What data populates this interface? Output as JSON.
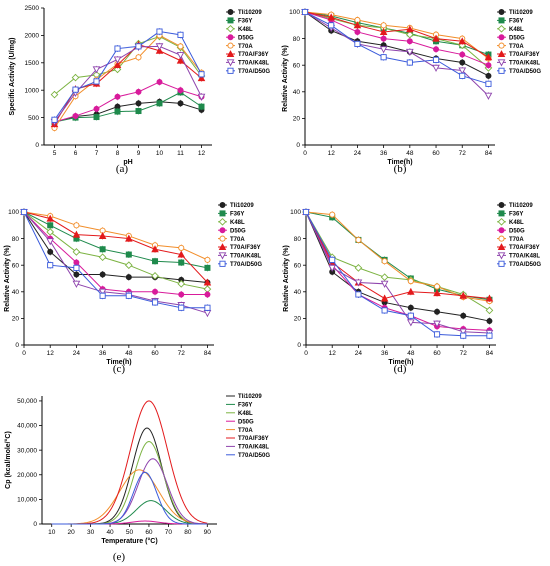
{
  "colors": {
    "Tli10209": "#222222",
    "F36Y": "#1f8a4c",
    "K48L": "#7cb342",
    "D50G": "#d81b9b",
    "T70A": "#f28e2b",
    "T70A/F36Y": "#e31a1c",
    "T70A/K48L": "#8e44ad",
    "T70A/D50G": "#3b5bdb"
  },
  "series_order": [
    "Tli10209",
    "F36Y",
    "K48L",
    "D50G",
    "T70A",
    "T70A/F36Y",
    "T70A/K48L",
    "T70A/D50G"
  ],
  "chart_data": [
    {
      "panel": "(a)",
      "type": "line",
      "ylabel": "Specific Activity (U/mg)",
      "xlabel": "pH",
      "xlim": [
        4.5,
        12.5
      ],
      "ylim": [
        0,
        2500
      ],
      "xticks": [
        5,
        6,
        7,
        8,
        9,
        10,
        11,
        12
      ],
      "yticks": [
        0,
        500,
        1000,
        1500,
        2000,
        2500
      ],
      "x": [
        5,
        6,
        7,
        8,
        9,
        10,
        11,
        12
      ],
      "series": [
        {
          "name": "Tli10209",
          "marker": "circle-filled",
          "values": [
            420,
            520,
            560,
            700,
            760,
            790,
            760,
            640
          ]
        },
        {
          "name": "F36Y",
          "marker": "square-filled",
          "values": [
            420,
            500,
            510,
            610,
            620,
            760,
            960,
            700
          ]
        },
        {
          "name": "K48L",
          "marker": "diamond-open",
          "values": [
            920,
            1230,
            1280,
            1380,
            1850,
            1980,
            1780,
            1260
          ]
        },
        {
          "name": "D50G",
          "marker": "circle-filled",
          "values": [
            420,
            530,
            660,
            880,
            970,
            1150,
            1000,
            880
          ]
        },
        {
          "name": "T70A",
          "marker": "circle-open",
          "values": [
            310,
            890,
            1190,
            1480,
            1600,
            2000,
            1800,
            1320
          ]
        },
        {
          "name": "T70A/F36Y",
          "marker": "triangle-filled",
          "values": [
            380,
            1020,
            1120,
            1460,
            1830,
            1720,
            1540,
            1220
          ]
        },
        {
          "name": "T70A/K48L",
          "marker": "triangle-down-open",
          "values": [
            420,
            950,
            1380,
            1560,
            1790,
            1800,
            1640,
            880
          ]
        },
        {
          "name": "T70A/D50G",
          "marker": "square-open",
          "values": [
            460,
            1010,
            1160,
            1760,
            1800,
            2070,
            2010,
            1290
          ]
        }
      ]
    },
    {
      "panel": "(b)",
      "type": "line",
      "ylabel": "Relative Activity (%)",
      "xlabel": "Time(h)",
      "xlim": [
        0,
        87
      ],
      "ylim": [
        0,
        100
      ],
      "xticks": [
        0,
        12,
        24,
        36,
        48,
        60,
        72,
        84
      ],
      "yticks": [
        0,
        20,
        40,
        60,
        80,
        100
      ],
      "x": [
        0,
        12,
        24,
        36,
        48,
        60,
        72,
        84
      ],
      "series": [
        {
          "name": "Tli10209",
          "marker": "circle-filled",
          "values": [
            100,
            86,
            78,
            75,
            70,
            65,
            62,
            52
          ]
        },
        {
          "name": "F36Y",
          "marker": "square-filled",
          "values": [
            100,
            97,
            92,
            88,
            84,
            78,
            75,
            68
          ]
        },
        {
          "name": "K48L",
          "marker": "diamond-open",
          "values": [
            100,
            95,
            90,
            88,
            83,
            80,
            75,
            58
          ]
        },
        {
          "name": "D50G",
          "marker": "circle-filled",
          "values": [
            100,
            94,
            85,
            80,
            78,
            72,
            68,
            60
          ]
        },
        {
          "name": "T70A",
          "marker": "circle-open",
          "values": [
            100,
            98,
            94,
            90,
            88,
            83,
            80,
            65
          ]
        },
        {
          "name": "T70A/F36Y",
          "marker": "triangle-filled",
          "values": [
            100,
            96,
            90,
            85,
            87,
            80,
            78,
            66
          ]
        },
        {
          "name": "T70A/K48L",
          "marker": "triangle-down-open",
          "values": [
            100,
            88,
            76,
            72,
            70,
            58,
            56,
            37
          ]
        },
        {
          "name": "T70A/D50G",
          "marker": "square-open",
          "values": [
            100,
            90,
            76,
            66,
            62,
            64,
            52,
            46
          ]
        }
      ]
    },
    {
      "panel": "(c)",
      "type": "line",
      "ylabel": "Relative Activity (%)",
      "xlabel": "Time(h)",
      "xlim": [
        0,
        87
      ],
      "ylim": [
        0,
        100
      ],
      "xticks": [
        0,
        12,
        24,
        36,
        48,
        60,
        72,
        84
      ],
      "yticks": [
        0,
        20,
        40,
        60,
        80,
        100
      ],
      "x": [
        0,
        12,
        24,
        36,
        48,
        60,
        72,
        84
      ],
      "series": [
        {
          "name": "Tli10209",
          "marker": "circle-filled",
          "values": [
            100,
            70,
            53,
            53,
            51,
            51,
            49,
            47
          ]
        },
        {
          "name": "F36Y",
          "marker": "square-filled",
          "values": [
            100,
            90,
            80,
            72,
            68,
            63,
            62,
            58
          ]
        },
        {
          "name": "K48L",
          "marker": "diamond-open",
          "values": [
            100,
            85,
            70,
            66,
            60,
            52,
            46,
            42
          ]
        },
        {
          "name": "D50G",
          "marker": "circle-filled",
          "values": [
            100,
            80,
            62,
            42,
            40,
            40,
            38,
            38
          ]
        },
        {
          "name": "T70A",
          "marker": "circle-open",
          "values": [
            100,
            97,
            90,
            86,
            82,
            75,
            73,
            64
          ]
        },
        {
          "name": "T70A/F36Y",
          "marker": "triangle-filled",
          "values": [
            100,
            95,
            83,
            82,
            80,
            72,
            68,
            47
          ]
        },
        {
          "name": "T70A/K48L",
          "marker": "triangle-down-open",
          "values": [
            100,
            78,
            46,
            40,
            38,
            33,
            30,
            24
          ]
        },
        {
          "name": "T70A/D50G",
          "marker": "square-open",
          "values": [
            100,
            60,
            58,
            37,
            37,
            32,
            28,
            28
          ]
        }
      ]
    },
    {
      "panel": "(d)",
      "type": "line",
      "ylabel": "Relative Activity (%)",
      "xlabel": "Time(h)",
      "xlim": [
        0,
        87
      ],
      "ylim": [
        0,
        100
      ],
      "xticks": [
        0,
        12,
        24,
        36,
        48,
        60,
        72,
        84
      ],
      "yticks": [
        0,
        20,
        40,
        60,
        80,
        100
      ],
      "x": [
        0,
        12,
        24,
        36,
        48,
        60,
        72,
        84
      ],
      "series": [
        {
          "name": "Tli10209",
          "marker": "circle-filled",
          "values": [
            100,
            55,
            40,
            32,
            28,
            25,
            22,
            18
          ]
        },
        {
          "name": "F36Y",
          "marker": "square-filled",
          "values": [
            100,
            96,
            79,
            64,
            50,
            42,
            37,
            34
          ]
        },
        {
          "name": "K48L",
          "marker": "diamond-open",
          "values": [
            100,
            66,
            58,
            51,
            49,
            44,
            38,
            26
          ]
        },
        {
          "name": "D50G",
          "marker": "circle-filled",
          "values": [
            100,
            60,
            38,
            28,
            22,
            14,
            12,
            11
          ]
        },
        {
          "name": "T70A",
          "marker": "circle-open",
          "values": [
            100,
            98,
            79,
            63,
            48,
            44,
            36,
            33
          ]
        },
        {
          "name": "T70A/F36Y",
          "marker": "triangle-filled",
          "values": [
            100,
            62,
            47,
            35,
            40,
            39,
            37,
            35
          ]
        },
        {
          "name": "T70A/K48L",
          "marker": "triangle-down-open",
          "values": [
            100,
            58,
            47,
            46,
            17,
            16,
            10,
            9
          ]
        },
        {
          "name": "T70A/D50G",
          "marker": "square-open",
          "values": [
            100,
            64,
            38,
            26,
            22,
            8,
            7,
            7
          ]
        }
      ]
    },
    {
      "panel": "(e)",
      "type": "line",
      "ylabel": "Cp (kcal/mole/°C)",
      "xlabel": "Temperature (°C)",
      "xlim": [
        5,
        95
      ],
      "ylim": [
        0,
        52000
      ],
      "xticks": [
        10,
        20,
        30,
        40,
        50,
        60,
        70,
        80,
        90
      ],
      "yticks": [
        0,
        10000,
        20000,
        30000,
        40000,
        50000
      ],
      "ytick_labels": [
        "0",
        "10,000",
        "20,000",
        "30,000",
        "40,000",
        "50,000"
      ],
      "series": [
        {
          "name": "Tli10209",
          "peak_x": 59,
          "peak_y": 39000,
          "width": 7.5
        },
        {
          "name": "F36Y",
          "peak_x": 61,
          "peak_y": 9500,
          "width": 7.5
        },
        {
          "name": "K48L",
          "peak_x": 60,
          "peak_y": 33500,
          "width": 7.5
        },
        {
          "name": "D50G",
          "peak_x": 58,
          "peak_y": 1200,
          "width": 7
        },
        {
          "name": "T70A",
          "peak_x": 55,
          "peak_y": 22000,
          "width": 10
        },
        {
          "name": "T70A/F36Y",
          "peak_x": 60,
          "peak_y": 50000,
          "width": 9.5
        },
        {
          "name": "T70A/K48L",
          "peak_x": 62,
          "peak_y": 26500,
          "width": 7.5
        },
        {
          "name": "T70A/D50G",
          "peak_x": 58,
          "peak_y": 21000,
          "width": 6
        }
      ]
    }
  ]
}
